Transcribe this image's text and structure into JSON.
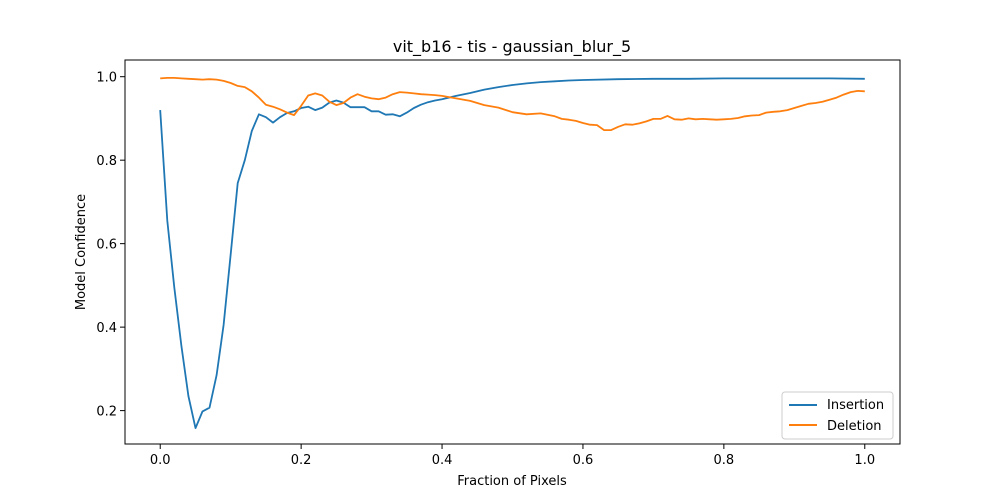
{
  "chart_data": {
    "type": "line",
    "title": "vit_b16 - tis - gaussian_blur_5",
    "xlabel": "Fraction of Pixels",
    "ylabel": "Model Confidence",
    "xlim": [
      -0.05,
      1.05
    ],
    "ylim": [
      0.12,
      1.04
    ],
    "xticks": [
      0.0,
      0.2,
      0.4,
      0.6,
      0.8,
      1.0
    ],
    "xtick_labels": [
      "0.0",
      "0.2",
      "0.4",
      "0.6",
      "0.8",
      "1.0"
    ],
    "yticks": [
      0.2,
      0.4,
      0.6,
      0.8,
      1.0
    ],
    "ytick_labels": [
      "0.2",
      "0.4",
      "0.6",
      "0.8",
      "1.0"
    ],
    "grid": false,
    "legend": "bottom-right",
    "series": [
      {
        "name": "Insertion",
        "color": "#1f77b4",
        "x": [
          0.0,
          0.01,
          0.02,
          0.03,
          0.04,
          0.05,
          0.06,
          0.07,
          0.08,
          0.09,
          0.1,
          0.11,
          0.12,
          0.13,
          0.14,
          0.15,
          0.16,
          0.17,
          0.18,
          0.19,
          0.2,
          0.21,
          0.22,
          0.23,
          0.24,
          0.25,
          0.26,
          0.27,
          0.28,
          0.29,
          0.3,
          0.31,
          0.32,
          0.33,
          0.34,
          0.35,
          0.36,
          0.37,
          0.38,
          0.39,
          0.4,
          0.42,
          0.44,
          0.46,
          0.48,
          0.5,
          0.52,
          0.54,
          0.56,
          0.58,
          0.6,
          0.65,
          0.7,
          0.75,
          0.8,
          0.85,
          0.9,
          0.95,
          1.0
        ],
        "values": [
          0.92,
          0.655,
          0.495,
          0.355,
          0.235,
          0.158,
          0.198,
          0.207,
          0.285,
          0.405,
          0.575,
          0.745,
          0.8,
          0.87,
          0.91,
          0.903,
          0.89,
          0.903,
          0.913,
          0.917,
          0.925,
          0.928,
          0.92,
          0.926,
          0.938,
          0.943,
          0.938,
          0.927,
          0.927,
          0.927,
          0.917,
          0.917,
          0.909,
          0.91,
          0.905,
          0.914,
          0.925,
          0.933,
          0.939,
          0.943,
          0.946,
          0.954,
          0.961,
          0.969,
          0.975,
          0.98,
          0.984,
          0.987,
          0.989,
          0.991,
          0.992,
          0.994,
          0.995,
          0.995,
          0.996,
          0.996,
          0.996,
          0.996,
          0.995
        ]
      },
      {
        "name": "Deletion",
        "color": "#ff7f0e",
        "x": [
          0.0,
          0.01,
          0.02,
          0.03,
          0.04,
          0.05,
          0.06,
          0.07,
          0.08,
          0.09,
          0.1,
          0.11,
          0.12,
          0.13,
          0.14,
          0.15,
          0.16,
          0.17,
          0.18,
          0.19,
          0.2,
          0.21,
          0.22,
          0.23,
          0.24,
          0.25,
          0.26,
          0.27,
          0.28,
          0.29,
          0.3,
          0.31,
          0.32,
          0.33,
          0.34,
          0.35,
          0.36,
          0.37,
          0.38,
          0.39,
          0.4,
          0.42,
          0.44,
          0.46,
          0.48,
          0.5,
          0.52,
          0.54,
          0.56,
          0.57,
          0.58,
          0.59,
          0.6,
          0.61,
          0.62,
          0.63,
          0.64,
          0.65,
          0.66,
          0.67,
          0.68,
          0.69,
          0.7,
          0.71,
          0.72,
          0.73,
          0.74,
          0.75,
          0.76,
          0.77,
          0.78,
          0.79,
          0.8,
          0.81,
          0.82,
          0.83,
          0.84,
          0.85,
          0.86,
          0.87,
          0.88,
          0.89,
          0.9,
          0.91,
          0.92,
          0.93,
          0.94,
          0.95,
          0.96,
          0.97,
          0.98,
          0.99,
          1.0
        ],
        "values": [
          0.996,
          0.997,
          0.997,
          0.996,
          0.995,
          0.994,
          0.993,
          0.994,
          0.993,
          0.99,
          0.985,
          0.978,
          0.975,
          0.965,
          0.95,
          0.933,
          0.928,
          0.922,
          0.914,
          0.908,
          0.93,
          0.955,
          0.96,
          0.955,
          0.94,
          0.932,
          0.937,
          0.95,
          0.958,
          0.952,
          0.948,
          0.946,
          0.95,
          0.958,
          0.963,
          0.962,
          0.96,
          0.958,
          0.957,
          0.956,
          0.954,
          0.948,
          0.942,
          0.932,
          0.926,
          0.915,
          0.91,
          0.912,
          0.905,
          0.899,
          0.897,
          0.894,
          0.889,
          0.885,
          0.884,
          0.872,
          0.872,
          0.88,
          0.886,
          0.885,
          0.888,
          0.893,
          0.899,
          0.899,
          0.906,
          0.898,
          0.897,
          0.9,
          0.898,
          0.899,
          0.898,
          0.897,
          0.898,
          0.899,
          0.901,
          0.905,
          0.907,
          0.908,
          0.914,
          0.916,
          0.917,
          0.92,
          0.925,
          0.93,
          0.935,
          0.937,
          0.94,
          0.945,
          0.95,
          0.957,
          0.963,
          0.966,
          0.965
        ]
      }
    ]
  }
}
